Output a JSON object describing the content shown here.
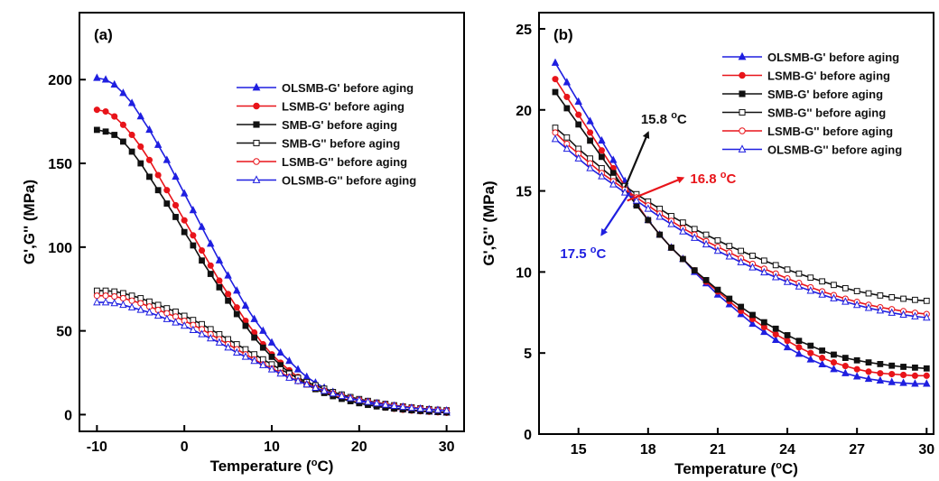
{
  "chart_data": [
    {
      "type": "line",
      "panel_label": "(a)",
      "xlabel": "Temperature (",
      "xlabel_sup": "o",
      "xlabel_tail": "C)",
      "ylabel": "G',G'' (MPa)",
      "xlim": [
        -12,
        32
      ],
      "ylim": [
        -10,
        240
      ],
      "xticks": [
        -10,
        0,
        10,
        20,
        30
      ],
      "yticks": [
        0,
        50,
        100,
        150,
        200
      ],
      "legend_position": "top-right",
      "x": [
        -10,
        -9,
        -8,
        -7,
        -6,
        -5,
        -4,
        -3,
        -2,
        -1,
        0,
        1,
        2,
        3,
        4,
        5,
        6,
        7,
        8,
        9,
        10,
        11,
        12,
        13,
        14,
        15,
        16,
        17,
        18,
        19,
        20,
        21,
        22,
        23,
        24,
        25,
        26,
        27,
        28,
        29,
        30
      ],
      "series": [
        {
          "name": "OLSMB-G' before aging",
          "color": "#1f1fe0",
          "marker": "triangle-filled",
          "values": [
            201,
            200,
            197,
            192,
            186,
            178,
            170,
            161,
            152,
            142,
            132,
            122,
            112,
            102,
            92,
            83,
            74,
            65,
            57,
            50,
            43,
            37,
            32,
            27,
            22.5,
            19,
            16,
            13.5,
            11.5,
            9.8,
            8.2,
            7,
            5.8,
            4.8,
            4,
            3.3,
            2.7,
            2.2,
            1.8,
            1.5,
            1.2
          ]
        },
        {
          "name": "LSMB-G' before aging",
          "color": "#e8141a",
          "marker": "circle-filled",
          "values": [
            182,
            181,
            178,
            173,
            167,
            160,
            152,
            143,
            134,
            125,
            116,
            107,
            98,
            89,
            80,
            72,
            64,
            56,
            49,
            42,
            36,
            31,
            26.5,
            22.5,
            19,
            16,
            13.5,
            11.5,
            9.8,
            8.3,
            7,
            5.9,
            5,
            4.2,
            3.5,
            2.9,
            2.4,
            2,
            1.7,
            1.4,
            1.1
          ]
        },
        {
          "name": "SMB-G' before aging",
          "color": "#111111",
          "marker": "square-filled",
          "values": [
            170,
            169,
            167,
            163,
            157,
            150,
            142,
            134,
            126,
            118,
            109,
            101,
            92,
            84,
            76,
            68,
            60,
            53,
            46,
            40,
            34.5,
            29.5,
            25,
            21.3,
            18,
            15.2,
            12.9,
            11,
            9.4,
            8,
            6.8,
            5.8,
            4.9,
            4.2,
            3.6,
            3.1,
            2.6,
            2.2,
            1.9,
            1.6,
            1.3
          ]
        },
        {
          "name": "SMB-G'' before aging",
          "color": "#111111",
          "marker": "square-open",
          "values": [
            74,
            74,
            73.5,
            72.5,
            71,
            69.5,
            67.5,
            65.5,
            63.5,
            61.5,
            59,
            56.5,
            54,
            51,
            48,
            45,
            42,
            39,
            36,
            33,
            30,
            27,
            24.5,
            22,
            19.5,
            17.5,
            15.5,
            13.5,
            12,
            10.5,
            9.3,
            8.2,
            7.2,
            6.4,
            5.6,
            4.9,
            4.3,
            3.8,
            3.3,
            2.9,
            2.6
          ]
        },
        {
          "name": "LSMB-G'' before aging",
          "color": "#e8141a",
          "marker": "circle-open",
          "values": [
            71,
            71,
            70.5,
            69.5,
            68,
            66.5,
            64.5,
            62.5,
            60.5,
            58.5,
            56,
            53.5,
            51,
            48,
            45,
            42,
            39,
            36,
            33,
            30,
            27.5,
            25,
            22.5,
            20,
            18,
            16,
            14.3,
            12.7,
            11.2,
            9.9,
            8.8,
            7.8,
            6.9,
            6.1,
            5.4,
            4.8,
            4.2,
            3.7,
            3.2,
            2.8,
            2.5
          ]
        },
        {
          "name": "OLSMB-G'' before aging",
          "color": "#1f1fe0",
          "marker": "triangle-open",
          "values": [
            67,
            67,
            66.5,
            65.5,
            64,
            62.5,
            61,
            59,
            57,
            55,
            53,
            50.5,
            48,
            45.5,
            43,
            40,
            37,
            34.5,
            32,
            29.5,
            27,
            24.5,
            22,
            20,
            18,
            16,
            14.2,
            12.6,
            11.1,
            9.8,
            8.6,
            7.6,
            6.7,
            5.9,
            5.2,
            4.6,
            4,
            3.5,
            3.1,
            2.7,
            2.4
          ]
        }
      ]
    },
    {
      "type": "line",
      "panel_label": "(b)",
      "xlabel": "Temperature (",
      "xlabel_sup": "o",
      "xlabel_tail": "C)",
      "ylabel": "G',G'' (MPa)",
      "xlim": [
        13.3,
        30.3
      ],
      "ylim": [
        0,
        26
      ],
      "xticks": [
        15,
        18,
        21,
        24,
        27,
        30
      ],
      "yticks": [
        0,
        5,
        10,
        15,
        20,
        25
      ],
      "legend_position": "top-right",
      "x": [
        14,
        14.5,
        15,
        15.5,
        16,
        16.5,
        17,
        17.5,
        18,
        18.5,
        19,
        19.5,
        20,
        20.5,
        21,
        21.5,
        22,
        22.5,
        23,
        23.5,
        24,
        24.5,
        25,
        25.5,
        26,
        26.5,
        27,
        27.5,
        28,
        28.5,
        29,
        29.5,
        30
      ],
      "series": [
        {
          "name": "OLSMB-G' before aging",
          "color": "#1f1fe0",
          "marker": "triangle-filled",
          "values": [
            22.9,
            21.7,
            20.5,
            19.3,
            18.1,
            16.9,
            15.6,
            14.2,
            13.2,
            12.3,
            11.5,
            10.8,
            10,
            9.3,
            8.6,
            8,
            7.4,
            6.8,
            6.3,
            5.8,
            5.35,
            4.95,
            4.6,
            4.3,
            4.0,
            3.75,
            3.55,
            3.4,
            3.3,
            3.2,
            3.15,
            3.1,
            3.1
          ]
        },
        {
          "name": "LSMB-G' before aging",
          "color": "#e8141a",
          "marker": "circle-filled",
          "values": [
            21.9,
            20.8,
            19.7,
            18.6,
            17.5,
            16.4,
            15.3,
            14.2,
            13.2,
            12.3,
            11.5,
            10.8,
            10.1,
            9.4,
            8.8,
            8.2,
            7.6,
            7.1,
            6.6,
            6.15,
            5.75,
            5.35,
            5.0,
            4.7,
            4.42,
            4.2,
            4.0,
            3.85,
            3.75,
            3.7,
            3.65,
            3.6,
            3.6
          ]
        },
        {
          "name": "SMB-G' before aging",
          "color": "#111111",
          "marker": "square-filled",
          "values": [
            21.1,
            20.1,
            19.1,
            18.1,
            17.1,
            16.1,
            15.1,
            14.1,
            13.2,
            12.3,
            11.5,
            10.8,
            10.1,
            9.5,
            8.9,
            8.35,
            7.85,
            7.35,
            6.9,
            6.5,
            6.1,
            5.75,
            5.45,
            5.15,
            4.9,
            4.7,
            4.55,
            4.42,
            4.32,
            4.22,
            4.15,
            4.1,
            4.05
          ]
        },
        {
          "name": "SMB-G'' before aging",
          "color": "#111111",
          "marker": "square-open",
          "values": [
            18.9,
            18.3,
            17.6,
            17.0,
            16.4,
            15.8,
            15.3,
            14.8,
            14.35,
            13.9,
            13.45,
            13.05,
            12.65,
            12.3,
            11.95,
            11.6,
            11.3,
            11.0,
            10.7,
            10.42,
            10.15,
            9.9,
            9.65,
            9.42,
            9.2,
            9.0,
            8.82,
            8.68,
            8.55,
            8.44,
            8.35,
            8.28,
            8.22
          ]
        },
        {
          "name": "LSMB-G'' before aging",
          "color": "#e8141a",
          "marker": "circle-open",
          "values": [
            18.6,
            17.9,
            17.3,
            16.7,
            16.1,
            15.6,
            15.1,
            14.6,
            14.1,
            13.6,
            13.15,
            12.7,
            12.3,
            11.9,
            11.55,
            11.2,
            10.85,
            10.5,
            10.2,
            9.9,
            9.6,
            9.32,
            9.05,
            8.8,
            8.57,
            8.35,
            8.15,
            7.97,
            7.82,
            7.7,
            7.58,
            7.48,
            7.4
          ]
        },
        {
          "name": "OLSMB-G'' before aging",
          "color": "#1f1fe0",
          "marker": "triangle-open",
          "values": [
            18.2,
            17.6,
            17.0,
            16.4,
            15.9,
            15.4,
            14.9,
            14.4,
            13.9,
            13.4,
            12.95,
            12.5,
            12.1,
            11.7,
            11.3,
            10.95,
            10.6,
            10.28,
            9.97,
            9.67,
            9.38,
            9.1,
            8.84,
            8.6,
            8.37,
            8.16,
            7.96,
            7.78,
            7.62,
            7.48,
            7.36,
            7.26,
            7.18
          ]
        }
      ],
      "annotations": [
        {
          "label": "15.8 ",
          "sup": "o",
          "tail": "C",
          "color": "#111111",
          "x": 17.0,
          "y": 15.2,
          "dx": 1.0,
          "dy": 3.4
        },
        {
          "label": "16.8 ",
          "sup": "o",
          "tail": "C",
          "color": "#e8141a",
          "x": 17.1,
          "y": 14.4,
          "dx": 2.4,
          "dy": 1.4
        },
        {
          "label": "17.5 ",
          "sup": "o",
          "tail": "C",
          "color": "#1f1fe0",
          "x": 17.2,
          "y": 14.9,
          "dx": -1.2,
          "dy": -2.6
        }
      ]
    }
  ]
}
